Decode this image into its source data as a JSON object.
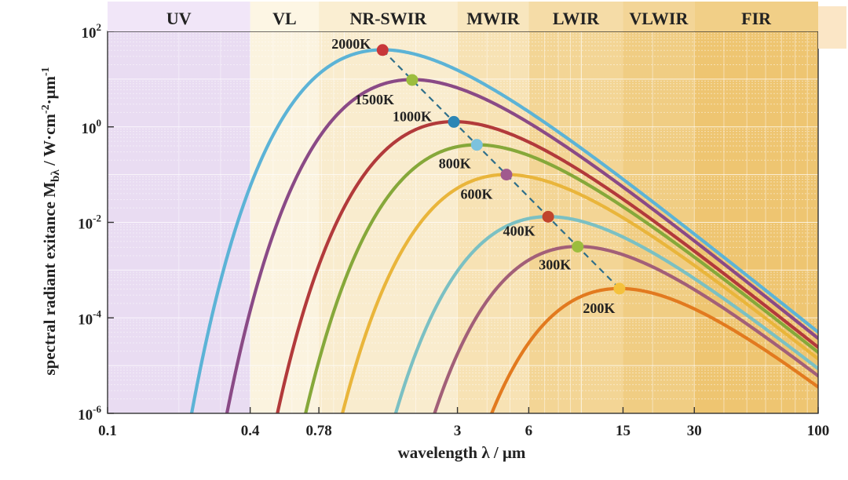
{
  "chart_data": {
    "type": "line",
    "xscale": "log",
    "yscale": "log",
    "xlim": [
      0.1,
      100
    ],
    "ylim": [
      1e-06,
      100
    ],
    "grid": true,
    "xlabel": "wavelength λ / μm",
    "ylabel": "spectral radiant exitance M",
    "ylabel_sub": "bλ",
    "ylabel_unit_main": " / W·cm",
    "ylabel_unit_exp1": "-2",
    "ylabel_unit_mid": "·μm",
    "ylabel_unit_exp2": "-1",
    "x_ticks": [
      {
        "value": 0.1,
        "label": "0.1"
      },
      {
        "value": 0.4,
        "label": "0.4"
      },
      {
        "value": 0.78,
        "label": "0.78"
      },
      {
        "value": 3,
        "label": "3"
      },
      {
        "value": 6,
        "label": "6"
      },
      {
        "value": 15,
        "label": "15"
      },
      {
        "value": 30,
        "label": "30"
      },
      {
        "value": 100,
        "label": "100"
      }
    ],
    "y_ticks": [
      {
        "value": 100,
        "base": "10",
        "exp": "2"
      },
      {
        "value": 1,
        "base": "10",
        "exp": "0"
      },
      {
        "value": 0.01,
        "base": "10",
        "exp": "-2"
      },
      {
        "value": 0.0001,
        "base": "10",
        "exp": "-4"
      },
      {
        "value": 1e-06,
        "base": "10",
        "exp": "-6"
      }
    ],
    "bands": [
      {
        "label": "UV",
        "from": 0.1,
        "to": 0.4,
        "color": "#e9dcf2",
        "header": "#f1e6f8"
      },
      {
        "label": "VL",
        "from": 0.4,
        "to": 0.78,
        "color": "#fbf3df",
        "header": "#fdf6e4"
      },
      {
        "label": "NR-SWIR",
        "from": 0.78,
        "to": 3,
        "color": "#f9ecce",
        "header": "#faeed2"
      },
      {
        "label": "MWIR",
        "from": 3,
        "to": 6,
        "color": "#f7e2b4",
        "header": "#f8e6be"
      },
      {
        "label": "LWIR",
        "from": 6,
        "to": 15,
        "color": "#f3d595",
        "header": "#f5dca7"
      },
      {
        "label": "VLWIR",
        "from": 15,
        "to": 30,
        "color": "#f0cd83",
        "header": "#f3d597"
      },
      {
        "label": "FIR",
        "from": 30,
        "to": 100,
        "color": "#eec571",
        "header": "#f1cf87"
      }
    ],
    "series": [
      {
        "label": "2000K",
        "temperature_K": 2000,
        "color": "#5cb3d6",
        "peak_lambda_um": 1.449,
        "peak_value": 40.7,
        "marker_color": "#c8373a"
      },
      {
        "label": "1500K",
        "temperature_K": 1500,
        "color": "#8a4a86",
        "peak_lambda_um": 1.932,
        "peak_value": 9.6,
        "marker_color": "#9cbd3e"
      },
      {
        "label": "1000K",
        "temperature_K": 1000,
        "color": "#b23a3b",
        "peak_lambda_um": 2.898,
        "peak_value": 1.27,
        "marker_color": "#2c86b5"
      },
      {
        "label": "800K",
        "temperature_K": 800,
        "color": "#86a83a",
        "peak_lambda_um": 3.622,
        "peak_value": 0.42,
        "marker_color": "#7cc2dd"
      },
      {
        "label": "600K",
        "temperature_K": 600,
        "color": "#e9b53b",
        "peak_lambda_um": 4.83,
        "peak_value": 0.1,
        "marker_color": "#a15a8e"
      },
      {
        "label": "400K",
        "temperature_K": 400,
        "color": "#7bc0c3",
        "peak_lambda_um": 7.245,
        "peak_value": 0.0131,
        "marker_color": "#c0442c"
      },
      {
        "label": "300K",
        "temperature_K": 300,
        "color": "#a25f78",
        "peak_lambda_um": 9.66,
        "peak_value": 0.0031,
        "marker_color": "#9cbd3e"
      },
      {
        "label": "200K",
        "temperature_K": 200,
        "color": "#e27a1f",
        "peak_lambda_um": 14.49,
        "peak_value": 0.00041,
        "marker_color": "#f4c13c"
      }
    ],
    "wien_line": {
      "style": "dashed",
      "color": "#2f6f8a"
    }
  }
}
